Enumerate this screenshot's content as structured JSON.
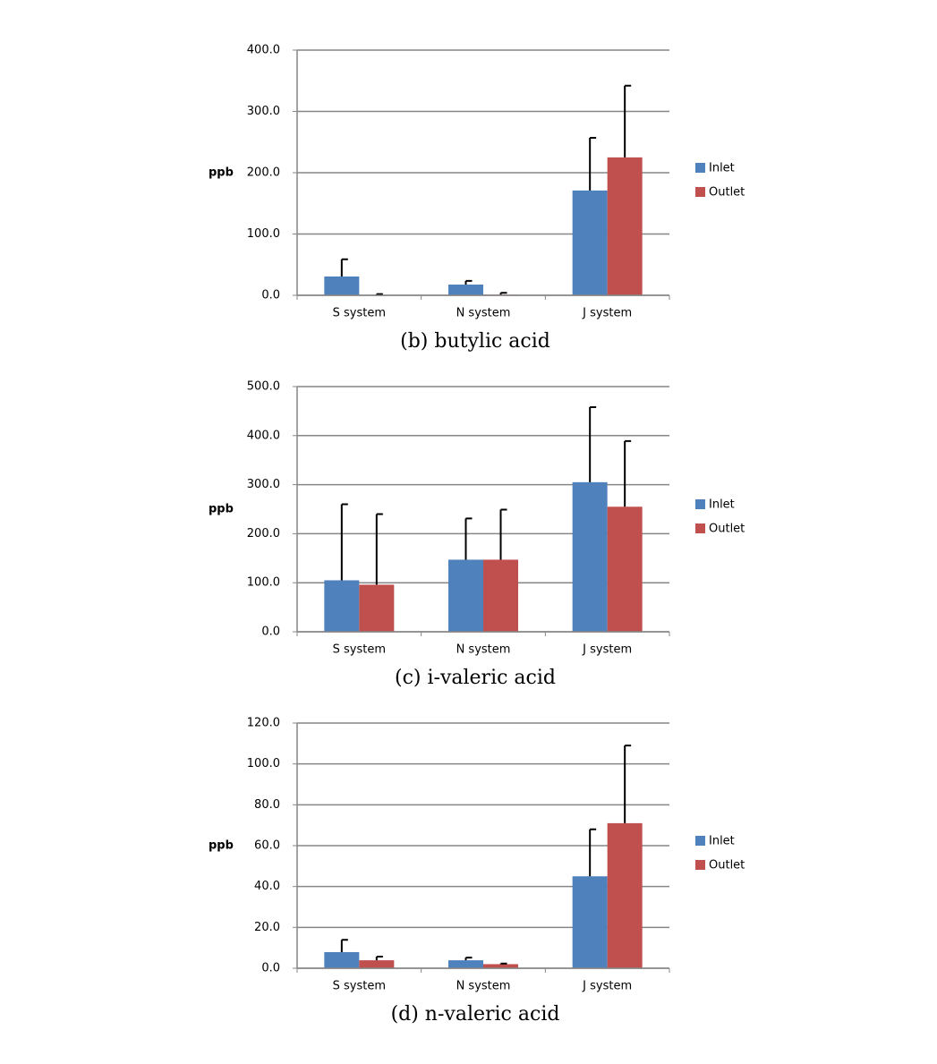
{
  "chart_data": [
    {
      "type": "bar",
      "title": "(b) butylic acid",
      "y_label": "ppb",
      "categories": [
        "S system",
        "N system",
        "J system"
      ],
      "series": [
        {
          "name": "Inlet",
          "color": "#4f81bd",
          "values": [
            30.7,
            17.5,
            171
          ],
          "errors": [
            28,
            6,
            86
          ]
        },
        {
          "name": "Outlet",
          "color": "#c0504d",
          "values": [
            0.5,
            1,
            225
          ],
          "errors": [
            1.5,
            3,
            117
          ]
        }
      ],
      "ylim": [
        0,
        400
      ],
      "yticks": [
        {
          "value": 0,
          "label": "0.0"
        },
        {
          "value": 100,
          "label": "100.0"
        },
        {
          "value": 200,
          "label": "200.0"
        },
        {
          "value": 300,
          "label": "300.0"
        },
        {
          "value": 400,
          "label": "400.0"
        }
      ],
      "grid": true
    },
    {
      "type": "bar",
      "title": "(c) i-valeric acid",
      "y_label": "ppb",
      "categories": [
        "S system",
        "N system",
        "J system"
      ],
      "series": [
        {
          "name": "Inlet",
          "color": "#4f81bd",
          "values": [
            105,
            147,
            305
          ],
          "errors": [
            155,
            84,
            153
          ]
        },
        {
          "name": "Outlet",
          "color": "#c0504d",
          "values": [
            96,
            147,
            255
          ],
          "errors": [
            144,
            102,
            134
          ]
        }
      ],
      "ylim": [
        0,
        500
      ],
      "yticks": [
        {
          "value": 0,
          "label": "0.0"
        },
        {
          "value": 100,
          "label": "100.0"
        },
        {
          "value": 200,
          "label": "200.0"
        },
        {
          "value": 300,
          "label": "300.0"
        },
        {
          "value": 400,
          "label": "400.0"
        },
        {
          "value": 500,
          "label": "500.0"
        }
      ],
      "grid": true
    },
    {
      "type": "bar",
      "title": "(d) n-valeric acid",
      "y_label": "ppb",
      "categories": [
        "S system",
        "N system",
        "J system"
      ],
      "series": [
        {
          "name": "Inlet",
          "color": "#4f81bd",
          "values": [
            7.9,
            3.9,
            45
          ],
          "errors": [
            6,
            1.3,
            23
          ]
        },
        {
          "name": "Outlet",
          "color": "#c0504d",
          "values": [
            3.9,
            2,
            71
          ],
          "errors": [
            1.8,
            0.3,
            38
          ]
        }
      ],
      "ylim": [
        0,
        120
      ],
      "yticks": [
        {
          "value": 0,
          "label": "0.0"
        },
        {
          "value": 20,
          "label": "20.0"
        },
        {
          "value": 40,
          "label": "40.0"
        },
        {
          "value": 60,
          "label": "60.0"
        },
        {
          "value": 80,
          "label": "80.0"
        },
        {
          "value": 100,
          "label": "100.0"
        },
        {
          "value": 120,
          "label": "120.0"
        }
      ],
      "grid": true
    }
  ]
}
